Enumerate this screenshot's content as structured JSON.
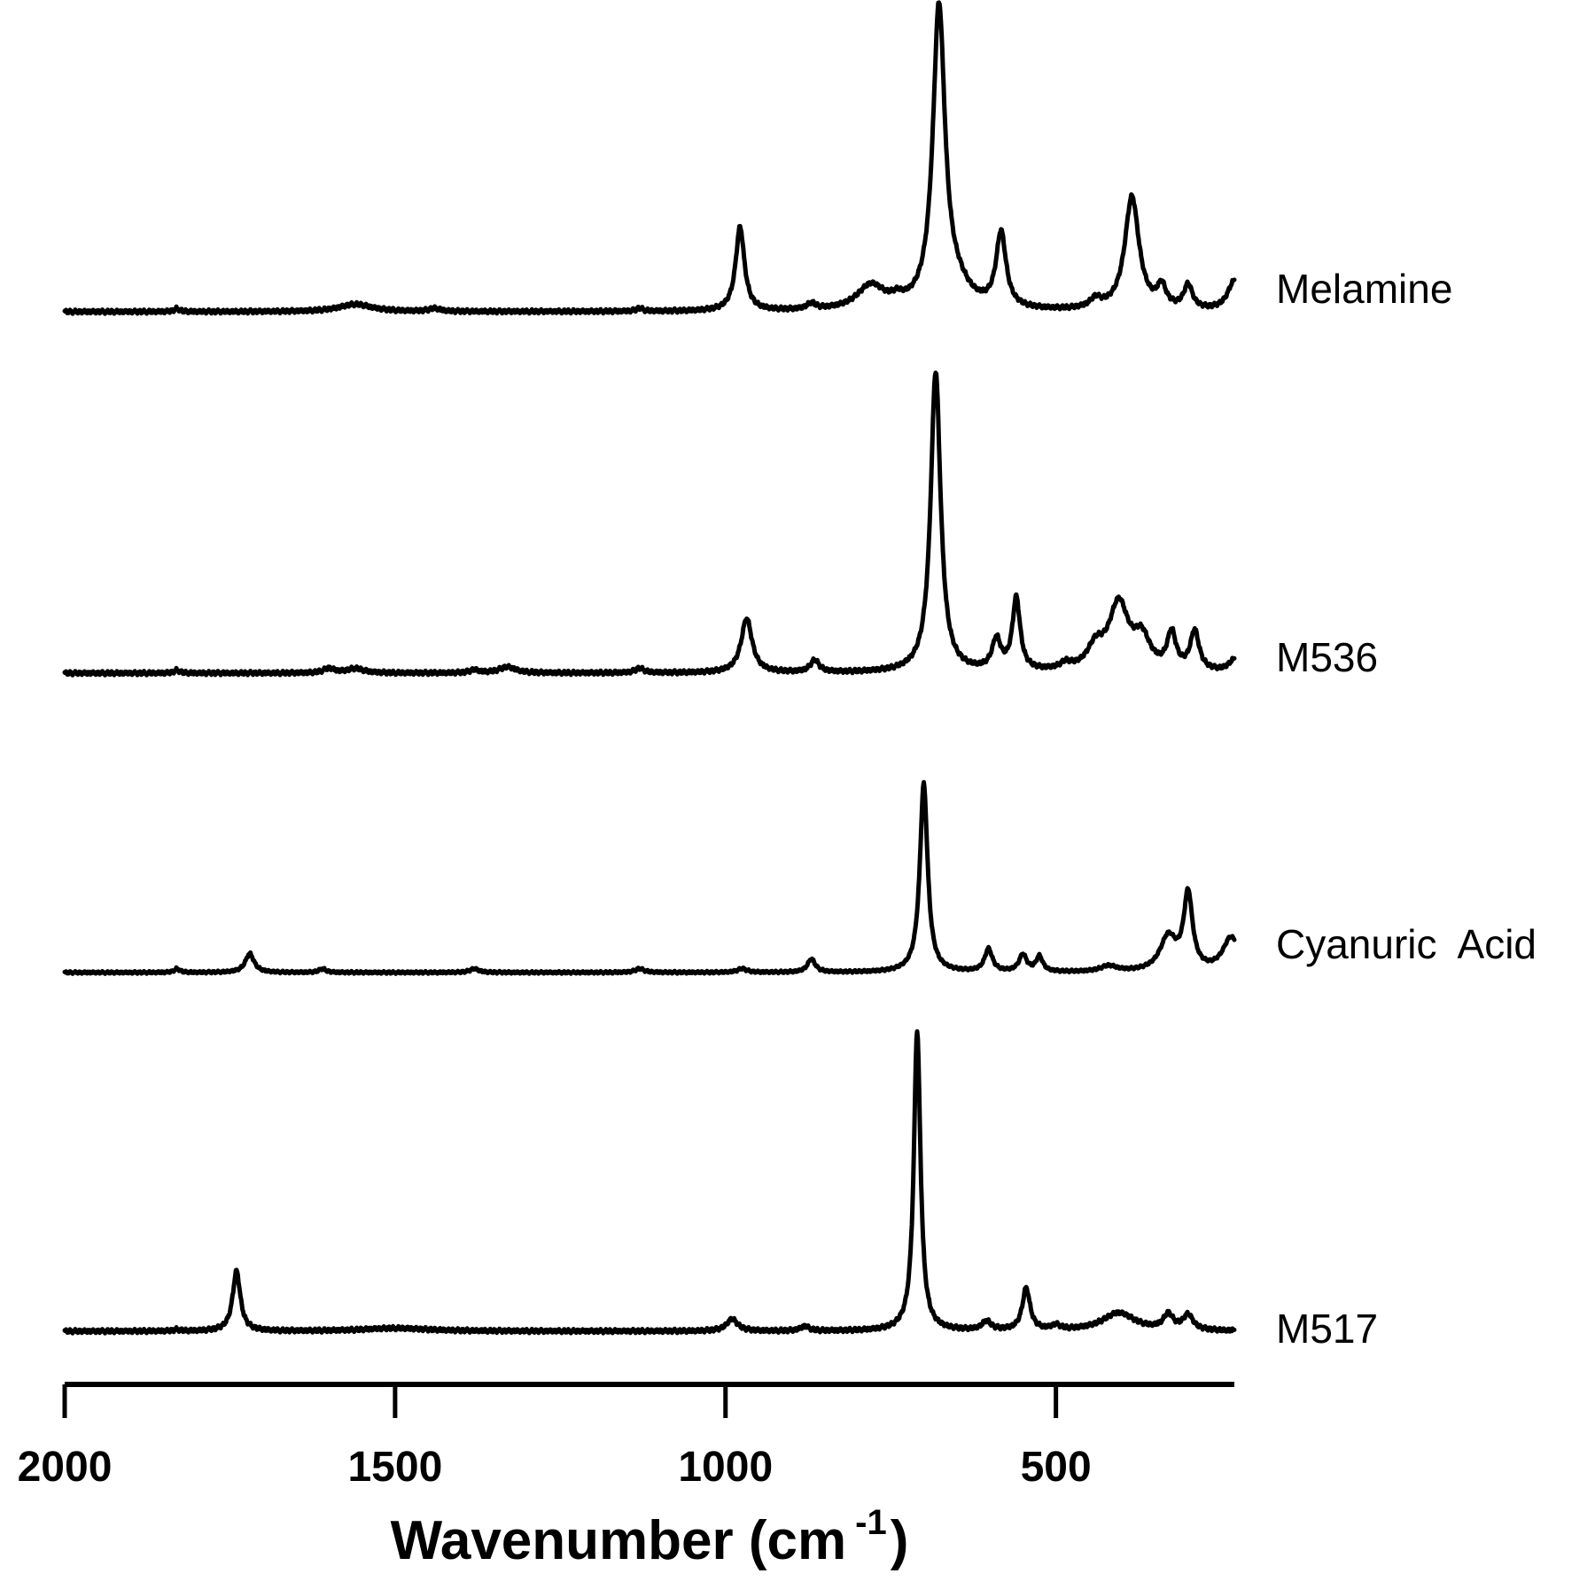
{
  "chart_data": {
    "type": "line",
    "title": "",
    "xlabel": "Wavenumber (cm",
    "xlabel_sup": "-1",
    "xlabel_close": ")",
    "ylabel": "",
    "xlim": [
      2000,
      230
    ],
    "x_reversed": true,
    "x_ticks": [
      2000,
      1500,
      1000,
      500
    ],
    "x_tick_labels": [
      "2000",
      "1500",
      "1000",
      "500"
    ],
    "grid": false,
    "y_axis_shown": false,
    "series": [
      {
        "name": "Melamine",
        "baseline": 0,
        "peaks": [
          {
            "x": 1830,
            "h": 0.01,
            "w": 5
          },
          {
            "x": 1560,
            "h": 0.025,
            "w": 30
          },
          {
            "x": 1440,
            "h": 0.01,
            "w": 10
          },
          {
            "x": 1130,
            "h": 0.01,
            "w": 6
          },
          {
            "x": 978,
            "h": 0.28,
            "w": 8
          },
          {
            "x": 870,
            "h": 0.02,
            "w": 8
          },
          {
            "x": 780,
            "h": 0.08,
            "w": 25
          },
          {
            "x": 740,
            "h": 0.02,
            "w": 10
          },
          {
            "x": 677,
            "h": 1.0,
            "w": 11
          },
          {
            "x": 650,
            "h": 0.06,
            "w": 25
          },
          {
            "x": 583,
            "h": 0.25,
            "w": 9
          },
          {
            "x": 440,
            "h": 0.03,
            "w": 10
          },
          {
            "x": 385,
            "h": 0.38,
            "w": 13
          },
          {
            "x": 340,
            "h": 0.07,
            "w": 8
          },
          {
            "x": 300,
            "h": 0.08,
            "w": 8
          },
          {
            "x": 230,
            "h": 0.1,
            "w": 12
          }
        ]
      },
      {
        "name": "M536",
        "baseline": 0,
        "peaks": [
          {
            "x": 1830,
            "h": 0.01,
            "w": 5
          },
          {
            "x": 1600,
            "h": 0.015,
            "w": 10
          },
          {
            "x": 1560,
            "h": 0.015,
            "w": 15
          },
          {
            "x": 1330,
            "h": 0.02,
            "w": 15
          },
          {
            "x": 1380,
            "h": 0.01,
            "w": 8
          },
          {
            "x": 1130,
            "h": 0.015,
            "w": 8
          },
          {
            "x": 968,
            "h": 0.18,
            "w": 10
          },
          {
            "x": 865,
            "h": 0.04,
            "w": 8
          },
          {
            "x": 682,
            "h": 1.0,
            "w": 9
          },
          {
            "x": 590,
            "h": 0.1,
            "w": 8
          },
          {
            "x": 560,
            "h": 0.24,
            "w": 7
          },
          {
            "x": 485,
            "h": 0.02,
            "w": 10
          },
          {
            "x": 440,
            "h": 0.07,
            "w": 15
          },
          {
            "x": 405,
            "h": 0.22,
            "w": 18
          },
          {
            "x": 370,
            "h": 0.1,
            "w": 15
          },
          {
            "x": 325,
            "h": 0.12,
            "w": 8
          },
          {
            "x": 290,
            "h": 0.13,
            "w": 8
          },
          {
            "x": 230,
            "h": 0.04,
            "w": 10
          }
        ]
      },
      {
        "name": "Cyanuric  Acid",
        "baseline": 0,
        "peaks": [
          {
            "x": 1830,
            "h": 0.02,
            "w": 5
          },
          {
            "x": 1720,
            "h": 0.1,
            "w": 8
          },
          {
            "x": 1610,
            "h": 0.02,
            "w": 6
          },
          {
            "x": 1380,
            "h": 0.02,
            "w": 8
          },
          {
            "x": 1130,
            "h": 0.02,
            "w": 8
          },
          {
            "x": 975,
            "h": 0.02,
            "w": 8
          },
          {
            "x": 870,
            "h": 0.07,
            "w": 7
          },
          {
            "x": 700,
            "h": 1.0,
            "w": 7
          },
          {
            "x": 602,
            "h": 0.12,
            "w": 7
          },
          {
            "x": 550,
            "h": 0.09,
            "w": 7
          },
          {
            "x": 525,
            "h": 0.08,
            "w": 6
          },
          {
            "x": 420,
            "h": 0.03,
            "w": 15
          },
          {
            "x": 330,
            "h": 0.18,
            "w": 15
          },
          {
            "x": 300,
            "h": 0.4,
            "w": 8
          },
          {
            "x": 235,
            "h": 0.18,
            "w": 15
          }
        ]
      },
      {
        "name": "M517",
        "baseline": 0,
        "peaks": [
          {
            "x": 1830,
            "h": 0.005,
            "w": 5
          },
          {
            "x": 1740,
            "h": 0.2,
            "w": 7
          },
          {
            "x": 1500,
            "h": 0.01,
            "w": 60
          },
          {
            "x": 990,
            "h": 0.04,
            "w": 10
          },
          {
            "x": 880,
            "h": 0.015,
            "w": 8
          },
          {
            "x": 710,
            "h": 1.0,
            "w": 6
          },
          {
            "x": 605,
            "h": 0.03,
            "w": 8
          },
          {
            "x": 545,
            "h": 0.14,
            "w": 7
          },
          {
            "x": 500,
            "h": 0.015,
            "w": 8
          },
          {
            "x": 405,
            "h": 0.06,
            "w": 30
          },
          {
            "x": 330,
            "h": 0.05,
            "w": 9
          },
          {
            "x": 300,
            "h": 0.05,
            "w": 9
          }
        ]
      }
    ]
  }
}
